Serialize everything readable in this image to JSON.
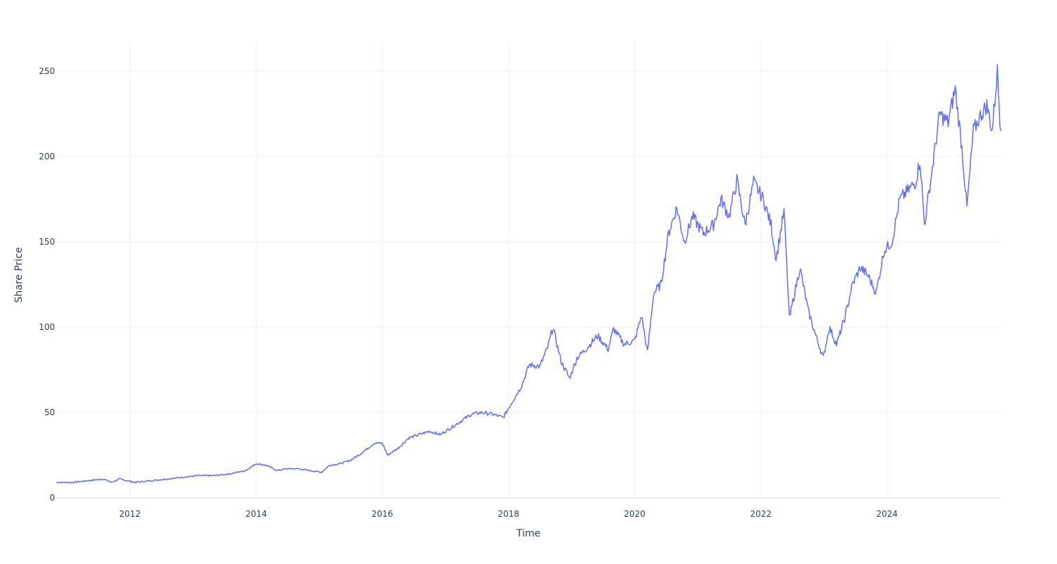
{
  "chart_data": {
    "type": "line",
    "xlabel": "Time",
    "ylabel": "Share Price",
    "xlim": [
      "2010-11-01",
      "2025-10-20"
    ],
    "ylim": [
      0,
      267
    ],
    "x_ticks": [
      "2012",
      "2014",
      "2016",
      "2018",
      "2020",
      "2022",
      "2024"
    ],
    "y_ticks": [
      0,
      50,
      100,
      150,
      200,
      250
    ],
    "grid": true,
    "line_color": "#636efa",
    "series": [
      {
        "x": [
          "2010-11-01",
          "2011-02-01",
          "2011-05-01",
          "2011-08-01",
          "2011-09-15",
          "2011-11-01",
          "2012-02-01",
          "2012-05-01",
          "2012-08-01",
          "2012-11-01",
          "2013-02-01",
          "2013-05-01",
          "2013-08-01",
          "2013-11-01",
          "2014-01-01",
          "2014-03-01",
          "2014-05-01",
          "2014-07-01",
          "2014-09-01",
          "2014-11-01",
          "2015-01-15",
          "2015-03-01",
          "2015-05-01",
          "2015-07-01",
          "2015-09-01",
          "2015-11-15",
          "2016-01-01",
          "2016-02-01",
          "2016-04-01",
          "2016-06-01",
          "2016-08-01",
          "2016-10-01",
          "2016-12-01",
          "2017-02-01",
          "2017-04-01",
          "2017-06-01",
          "2017-08-01",
          "2017-10-01",
          "2017-12-01",
          "2018-02-01",
          "2018-03-15",
          "2018-05-01",
          "2018-07-01",
          "2018-08-15",
          "2018-09-15",
          "2018-11-01",
          "2018-12-20",
          "2019-02-01",
          "2019-04-01",
          "2019-06-01",
          "2019-08-01",
          "2019-09-01",
          "2019-11-01",
          "2020-01-01",
          "2020-02-10",
          "2020-03-15",
          "2020-04-20",
          "2020-06-01",
          "2020-07-15",
          "2020-09-01",
          "2020-10-15",
          "2020-12-01",
          "2021-02-01",
          "2021-04-01",
          "2021-05-15",
          "2021-07-01",
          "2021-08-15",
          "2021-10-01",
          "2021-11-20",
          "2022-01-15",
          "2022-03-01",
          "2022-03-30",
          "2022-05-15",
          "2022-06-15",
          "2022-07-15",
          "2022-08-15",
          "2022-10-01",
          "2022-11-15",
          "2022-12-28",
          "2023-02-01",
          "2023-03-15",
          "2023-05-01",
          "2023-06-15",
          "2023-07-30",
          "2023-09-15",
          "2023-10-30",
          "2023-12-15",
          "2024-01-30",
          "2024-03-15",
          "2024-05-01",
          "2024-06-15",
          "2024-07-10",
          "2024-08-05",
          "2024-09-15",
          "2024-11-01",
          "2024-12-20",
          "2025-01-30",
          "2025-03-10",
          "2025-04-08",
          "2025-05-15",
          "2025-06-30",
          "2025-08-01",
          "2025-09-01",
          "2025-10-01",
          "2025-10-20"
        ],
        "values": [
          9,
          9,
          10,
          11,
          9,
          11,
          9,
          10,
          11,
          12,
          13,
          13,
          14,
          16,
          20,
          19,
          16,
          17,
          17,
          16,
          15,
          19,
          20,
          22,
          26,
          32,
          32,
          25,
          29,
          35,
          37,
          39,
          37,
          41,
          45,
          49,
          50,
          49,
          47,
          58,
          65,
          78,
          77,
          88,
          100,
          80,
          70,
          82,
          88,
          95,
          87,
          99,
          90,
          92,
          107,
          85,
          120,
          125,
          155,
          170,
          150,
          165,
          155,
          160,
          175,
          165,
          186,
          160,
          185,
          175,
          160,
          140,
          168,
          105,
          120,
          135,
          110,
          95,
          82,
          100,
          90,
          105,
          125,
          135,
          130,
          120,
          145,
          150,
          175,
          180,
          185,
          198,
          160,
          190,
          225,
          220,
          240,
          205,
          170,
          215,
          225,
          230,
          215,
          250,
          215
        ]
      }
    ]
  }
}
